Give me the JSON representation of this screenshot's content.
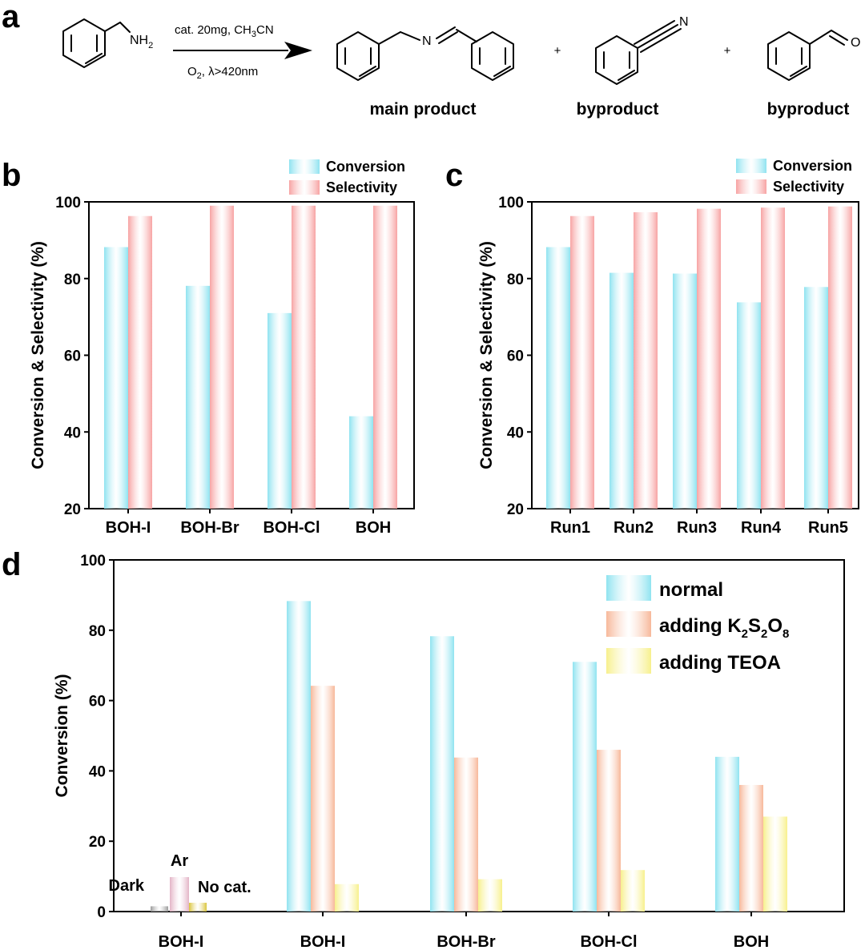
{
  "panel_labels": {
    "a": "a",
    "b": "b",
    "c": "c",
    "d": "d"
  },
  "scheme": {
    "reactant_group": "NH",
    "reactant_group_sub": "2",
    "cond_top_pre": "cat. 20mg, CH",
    "cond_top_sub": "3",
    "cond_top_post": "CN",
    "cond_bottom_pre": "O",
    "cond_bottom_sub": "2",
    "cond_bottom_post": ", λ>420nm",
    "imine_n": "N",
    "nitrile_n": "N",
    "aldehyde_o": "O",
    "plus": "+",
    "main_product": "main product",
    "byproduct_1": "byproduct",
    "byproduct_2": "byproduct"
  },
  "colors": {
    "conversion": "#8fe3f0",
    "selectivity": "#f7a3a3",
    "k2s2o8": "#f7b89a",
    "teoa": "#f7f08c",
    "dark": "#9a9a9a",
    "ar": "#e3b4c6",
    "nocat": "#d9c43a"
  },
  "chart_data": [
    {
      "type": "bar",
      "categories": [
        "BOH-I",
        "BOH-Br",
        "BOH-Cl",
        "BOH"
      ],
      "series": [
        {
          "name": "Conversion",
          "values": [
            88.2,
            78.1,
            71.0,
            44.1
          ]
        },
        {
          "name": "Selectivity",
          "values": [
            96.3,
            99.0,
            99.0,
            99.0
          ]
        }
      ],
      "ylabel": "Conversion & Selectivity (%)",
      "ylim": [
        20,
        100
      ],
      "yticks": [
        20,
        40,
        60,
        80,
        100
      ],
      "legend": "top-right"
    },
    {
      "type": "bar",
      "categories": [
        "Run1",
        "Run2",
        "Run3",
        "Run4",
        "Run5"
      ],
      "series": [
        {
          "name": "Conversion",
          "values": [
            88.2,
            81.5,
            81.3,
            73.8,
            77.8
          ]
        },
        {
          "name": "Selectivity",
          "values": [
            96.3,
            97.3,
            98.2,
            98.5,
            98.8
          ]
        }
      ],
      "ylabel": "Conversion & Selectivity (%)",
      "ylim": [
        20,
        100
      ],
      "yticks": [
        20,
        40,
        60,
        80,
        100
      ],
      "legend": "top-right"
    },
    {
      "type": "bar",
      "control_group": {
        "category": "BOH-I",
        "bars": [
          {
            "label": "Dark",
            "value": 1.5
          },
          {
            "label": "Ar",
            "value": 9.8
          },
          {
            "label": "No cat.",
            "value": 2.5
          }
        ]
      },
      "categories": [
        "BOH-I",
        "BOH-Br",
        "BOH-Cl",
        "BOH"
      ],
      "series": [
        {
          "name": "normal",
          "values": [
            88.3,
            78.3,
            71.0,
            44.0
          ]
        },
        {
          "name_pre": "adding K",
          "name_sub1": "2",
          "name_mid1": "S",
          "name_sub2": "2",
          "name_mid2": "O",
          "name_sub3": "8",
          "values": [
            64.2,
            43.8,
            46.0,
            36.0
          ]
        },
        {
          "name": "adding TEOA",
          "values": [
            7.8,
            9.2,
            11.8,
            27.0
          ]
        }
      ],
      "ylabel": "Conversion  (%)",
      "ylim": [
        0,
        100
      ],
      "yticks": [
        0,
        20,
        40,
        60,
        80,
        100
      ],
      "legend": "top-right"
    }
  ]
}
